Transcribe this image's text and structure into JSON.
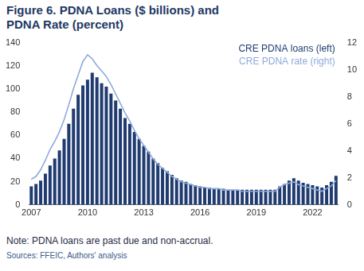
{
  "chart_data": {
    "type": "bar",
    "title": "Figure 6. PDNA Loans ($ billions) and PDNA Rate (percent)",
    "note": "Note: PDNA loans are past due and non-accrual.",
    "source": "Sources: FFEIC, Authors' analysis",
    "categories": [
      "2007",
      null,
      null,
      null,
      null,
      null,
      null,
      null,
      null,
      null,
      null,
      null,
      "2010",
      null,
      null,
      null,
      null,
      null,
      null,
      null,
      null,
      null,
      null,
      null,
      "2013",
      null,
      null,
      null,
      null,
      null,
      null,
      null,
      null,
      null,
      null,
      null,
      "2016",
      null,
      null,
      null,
      null,
      null,
      null,
      null,
      null,
      null,
      null,
      null,
      "2019",
      null,
      null,
      null,
      null,
      null,
      null,
      null,
      null,
      null,
      null,
      null,
      "2022",
      null,
      null,
      null,
      null,
      null
    ],
    "series": [
      {
        "name": "CRE PDNA loans (left)",
        "type": "bar",
        "color": "#1f3b70",
        "values": [
          16,
          18,
          21,
          27,
          34,
          40,
          47,
          57,
          70,
          83,
          95,
          103,
          108,
          114,
          110,
          105,
          102,
          96,
          90,
          83,
          75,
          70,
          63,
          57,
          51,
          46,
          40,
          36,
          32,
          29,
          26,
          23,
          21,
          20,
          18,
          17,
          16,
          15,
          15,
          14,
          14,
          14,
          13,
          13,
          13,
          13,
          13,
          13,
          13,
          13,
          13,
          13,
          13,
          16,
          18,
          21,
          23,
          21,
          19,
          18,
          17,
          16,
          15,
          17,
          20,
          25
        ]
      },
      {
        "name": "CRE PDNA rate (right)",
        "type": "line",
        "axis": "y2",
        "color": "#8eaadb",
        "values": [
          1.9,
          2.1,
          2.6,
          3.3,
          4.1,
          4.7,
          5.4,
          6.3,
          7.4,
          8.6,
          9.6,
          10.6,
          11.1,
          10.8,
          10.3,
          9.9,
          9.5,
          8.9,
          8.2,
          7.5,
          6.8,
          6.2,
          5.5,
          4.9,
          4.4,
          3.9,
          3.4,
          3.0,
          2.7,
          2.4,
          2.1,
          1.9,
          1.7,
          1.6,
          1.5,
          1.4,
          1.3,
          1.3,
          1.2,
          1.2,
          1.2,
          1.1,
          1.1,
          1.1,
          1.1,
          1.0,
          1.0,
          1.0,
          1.0,
          1.0,
          1.0,
          1.0,
          1.0,
          1.3,
          1.5,
          1.6,
          1.7,
          1.5,
          1.4,
          1.3,
          1.2,
          1.1,
          1.0,
          1.2,
          1.4,
          1.8
        ]
      }
    ],
    "ylim": [
      0,
      140
    ],
    "yticks": [
      0,
      20,
      40,
      60,
      80,
      100,
      120,
      140
    ],
    "y2lim": [
      0,
      12
    ],
    "y2ticks": [
      0,
      2,
      4,
      6,
      8,
      10,
      12
    ],
    "grid": false,
    "legend": "upper right"
  }
}
